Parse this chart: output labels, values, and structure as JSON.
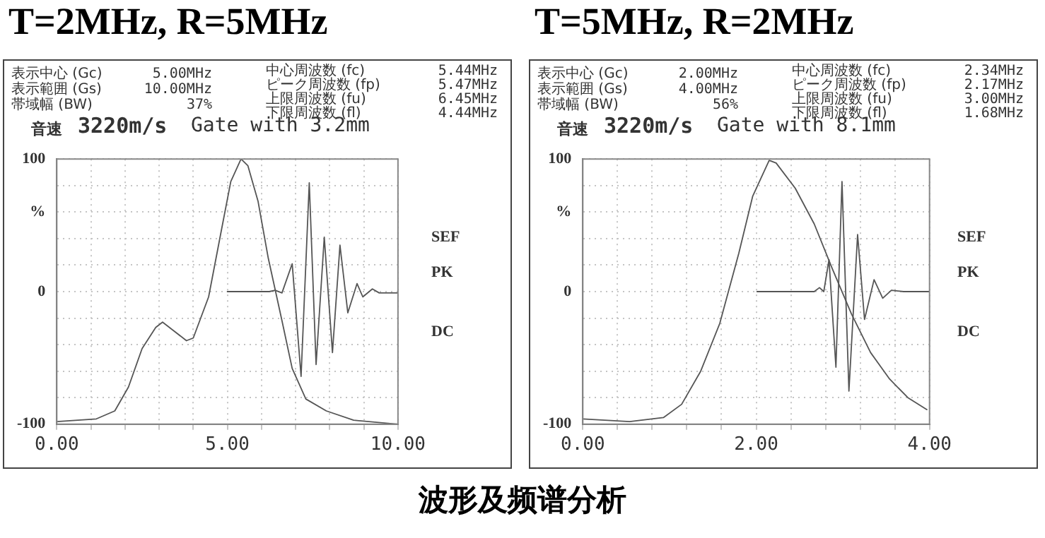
{
  "chart_data": [
    {
      "type": "line",
      "title": "T=2MHz, R=5MHz",
      "marker": "none",
      "grid": true,
      "legend": false,
      "xlim": [
        0,
        10
      ],
      "xticks": [
        {
          "value": 0,
          "label": "0.00"
        },
        {
          "value": 1,
          "label": null
        },
        {
          "value": 2,
          "label": null
        },
        {
          "value": 3,
          "label": null
        },
        {
          "value": 4,
          "label": null
        },
        {
          "value": 5,
          "label": "5.00"
        },
        {
          "value": 6,
          "label": null
        },
        {
          "value": 7,
          "label": null
        },
        {
          "value": 8,
          "label": null
        },
        {
          "value": 9,
          "label": null
        },
        {
          "value": 10,
          "label": "10.00"
        }
      ],
      "ylim": [
        -100,
        100
      ],
      "yticks": [
        -100,
        {
          "value": -80,
          "label": null
        },
        {
          "value": -60,
          "label": null
        },
        {
          "value": -40,
          "label": null
        },
        {
          "value": -20,
          "label": null
        },
        0,
        {
          "value": 20,
          "label": null
        },
        {
          "value": 40,
          "label": null
        },
        {
          "value": 60,
          "label": "%"
        },
        {
          "value": 80,
          "label": null
        },
        100
      ],
      "series": [
        {
          "color": "#555555",
          "x": [
            0,
            1.16,
            1.7,
            2.1,
            2.5,
            2.9,
            3.1,
            3.4,
            3.8,
            4.0,
            4.45,
            4.8,
            5.1,
            5.4,
            5.6,
            5.9,
            6.2,
            6.6,
            6.9,
            7.3,
            7.9,
            8.7,
            10
          ],
          "values": [
            -98,
            -96,
            -90,
            -72,
            -43,
            -27,
            -23,
            -29,
            -37,
            -35,
            -4,
            43,
            83,
            100,
            95,
            68,
            25,
            -22,
            -58,
            -81,
            -90,
            -97,
            -100
          ]
        },
        {
          "color": "#555555",
          "x": [
            5.0,
            6.23,
            6.4,
            6.6,
            6.9,
            7.16,
            7.4,
            7.6,
            7.84,
            8.08,
            8.3,
            8.53,
            8.8,
            8.97,
            9.25,
            9.45,
            10
          ],
          "values": [
            0,
            0,
            1,
            -1,
            21,
            -64,
            82,
            -55,
            41,
            -46,
            35,
            -16,
            6,
            -4,
            2,
            -1,
            -1
          ]
        }
      ],
      "annotations": [
        "表示中心 (Gc)",
        "表示範囲 (Gs)",
        "帯域幅 (BW)",
        "5.00MHz",
        "10.00MHz",
        "37%",
        "中心周波数 (fc)",
        "ピーク周波数 (fp)",
        "上限周波数 (fu)",
        "下限周波数 (fl)",
        "5.44MHz",
        "5.47MHz",
        "6.45MHz",
        "4.44MHz",
        "音速",
        "3220m/s",
        "Gate with 3.2mm",
        "SEF",
        "PK",
        "DC",
        "波形及频谱分析"
      ]
    },
    {
      "type": "line",
      "title": "T=5MHz, R=2MHz",
      "marker": "none",
      "grid": true,
      "legend": false,
      "xlim": [
        0,
        4
      ],
      "xticks": [
        {
          "value": 0,
          "label": "0.00"
        },
        {
          "value": 0.4,
          "label": null
        },
        {
          "value": 0.8,
          "label": null
        },
        {
          "value": 1.2,
          "label": null
        },
        {
          "value": 1.6,
          "label": null
        },
        {
          "value": 2,
          "label": "2.00"
        },
        {
          "value": 2.4,
          "label": null
        },
        {
          "value": 2.8,
          "label": null
        },
        {
          "value": 3.2,
          "label": null
        },
        {
          "value": 3.6,
          "label": null
        },
        {
          "value": 4,
          "label": "4.00"
        }
      ],
      "ylim": [
        -100,
        100
      ],
      "yticks": [
        -100,
        {
          "value": -80,
          "label": null
        },
        {
          "value": -60,
          "label": null
        },
        {
          "value": -40,
          "label": null
        },
        {
          "value": -20,
          "label": null
        },
        0,
        {
          "value": 20,
          "label": null
        },
        {
          "value": 40,
          "label": null
        },
        {
          "value": 60,
          "label": "%"
        },
        {
          "value": 80,
          "label": null
        },
        100
      ],
      "series": [
        {
          "color": "#555555",
          "x": [
            0,
            0.54,
            0.93,
            1.14,
            1.36,
            1.58,
            1.8,
            1.96,
            2.15,
            2.23,
            2.45,
            2.67,
            2.88,
            3.1,
            3.32,
            3.54,
            3.75,
            3.97
          ],
          "values": [
            -96,
            -98,
            -95,
            -85,
            -60,
            -24,
            29,
            72,
            99,
            97,
            78,
            51,
            17,
            -17,
            -46,
            -66,
            -80,
            -89
          ]
        },
        {
          "color": "#555555",
          "x": [
            2.01,
            2.67,
            2.73,
            2.78,
            2.84,
            2.92,
            2.99,
            3.07,
            3.17,
            3.25,
            3.36,
            3.46,
            3.56,
            3.7,
            4
          ],
          "values": [
            0,
            0,
            3,
            0,
            24,
            -57,
            83,
            -75,
            43,
            -21,
            9,
            -5,
            1,
            0,
            0
          ]
        }
      ],
      "annotations": [
        "表示中心 (Gc)",
        "表示範囲 (Gs)",
        "帯域幅 (BW)",
        "2.00MHz",
        "4.00MHz",
        "56%",
        "中心周波数 (fc)",
        "ピーク周波数 (fp)",
        "上限周波数 (fu)",
        "下限周波数 (fl)",
        "2.34MHz",
        "2.17MHz",
        "3.00MHz",
        "1.68MHz",
        "音速",
        "3220m/s",
        "Gate with 8.1mm",
        "SEF",
        "PK",
        "DC"
      ]
    }
  ]
}
